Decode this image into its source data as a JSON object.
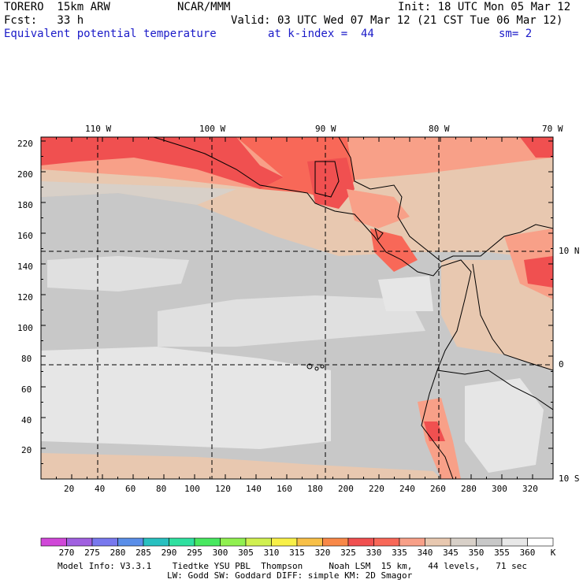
{
  "header": {
    "model": "TORERO  15km ARW",
    "center": "NCAR/MMM",
    "init": "Init: 18 UTC Mon 05 Mar 12",
    "fcst": "Fcst:   33 h",
    "valid": "Valid: 03 UTC Wed 07 Mar 12 (21 CST Tue 06 Mar 12)",
    "field": "Equivalent potential temperature",
    "level": "at k-index =  44",
    "smooth": "sm= 2"
  },
  "map": {
    "lon_labels": [
      "110 W",
      "100 W",
      "90 W",
      "80 W",
      "70 W"
    ],
    "lat_labels": [
      "10 N",
      "0",
      "10 S"
    ],
    "y_ticks": [
      "20",
      "40",
      "60",
      "80",
      "100",
      "120",
      "140",
      "160",
      "180",
      "200",
      "220"
    ],
    "x_ticks": [
      "20",
      "40",
      "60",
      "80",
      "100",
      "120",
      "140",
      "160",
      "180",
      "200",
      "220",
      "240",
      "260",
      "280",
      "300",
      "320"
    ]
  },
  "colorbar": {
    "levels": [
      "270",
      "275",
      "280",
      "285",
      "290",
      "295",
      "300",
      "305",
      "310",
      "315",
      "320",
      "325",
      "330",
      "335",
      "340",
      "345",
      "350",
      "355",
      "360"
    ],
    "unit": "K",
    "colors": [
      "#d048d8",
      "#a060e0",
      "#7878ee",
      "#5a8ee8",
      "#28c0c0",
      "#30e0a0",
      "#48e860",
      "#90f050",
      "#d0f050",
      "#f8f048",
      "#f8c048",
      "#f88848",
      "#f05050",
      "#f86858",
      "#f8a088",
      "#e8c8b0",
      "#d8d0c8",
      "#c8c8c8",
      "#e8e8e8",
      "#ffffff"
    ]
  },
  "footer": {
    "line1": "Model Info: V3.3.1    Tiedtke YSU PBL  Thompson     Noah LSM  15 km,   44 levels,   71 sec",
    "line2": "LW: Godd SW: Goddard DIFF: simple KM: 2D Smagor"
  }
}
